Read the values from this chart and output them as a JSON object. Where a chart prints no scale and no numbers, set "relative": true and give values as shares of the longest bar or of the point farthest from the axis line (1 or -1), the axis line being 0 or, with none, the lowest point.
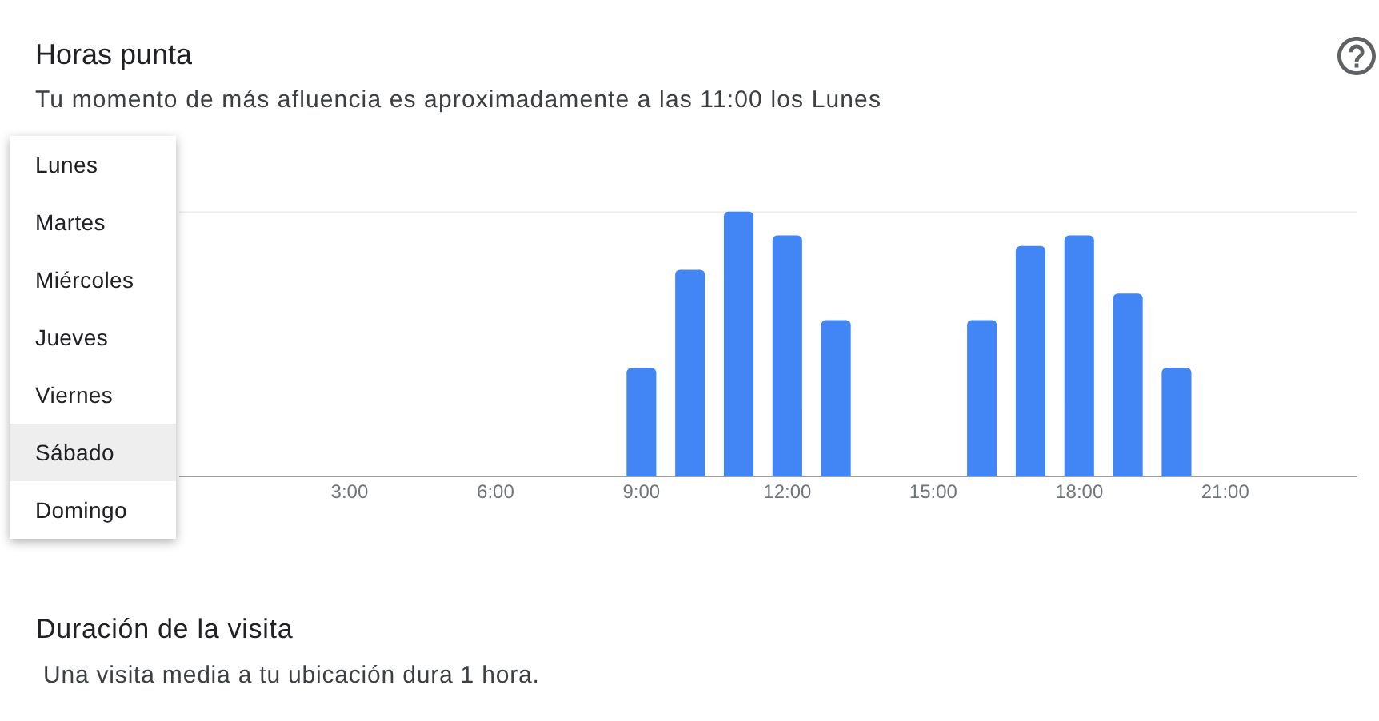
{
  "chart_data": {
    "type": "bar",
    "title": "Horas punta",
    "subtitle": "Tu momento de más afluencia es aproximadamente a las 11:00 los Lunes",
    "x": [
      9,
      10,
      11,
      12,
      13,
      16,
      17,
      18,
      19,
      20
    ],
    "values": [
      0.41,
      0.78,
      1,
      0.91,
      0.59,
      0.59,
      0.87,
      0.91,
      0.69,
      0.41
    ],
    "color": "#4285f4",
    "relative": true,
    "xlim": [
      -0.5,
      23.7
    ],
    "xticks": [
      {
        "value": 3,
        "label": "3:00"
      },
      {
        "value": 6,
        "label": "6:00"
      },
      {
        "value": 9,
        "label": "9:00"
      },
      {
        "value": 12,
        "label": "12:00"
      },
      {
        "value": 15,
        "label": "15:00"
      },
      {
        "value": 18,
        "label": "18:00"
      },
      {
        "value": 21,
        "label": "21:00"
      }
    ],
    "ref_lines": [
      {
        "axis": "y",
        "value": 1,
        "color": "#ebebeb"
      }
    ],
    "annotations": [
      "Lunes",
      "Martes",
      "Miércoles",
      "Jueves",
      "Viernes",
      "Sábado",
      "Domingo",
      "Duración de la visita",
      "Una visita media a tu ubicación dura 1 hora."
    ]
  }
}
